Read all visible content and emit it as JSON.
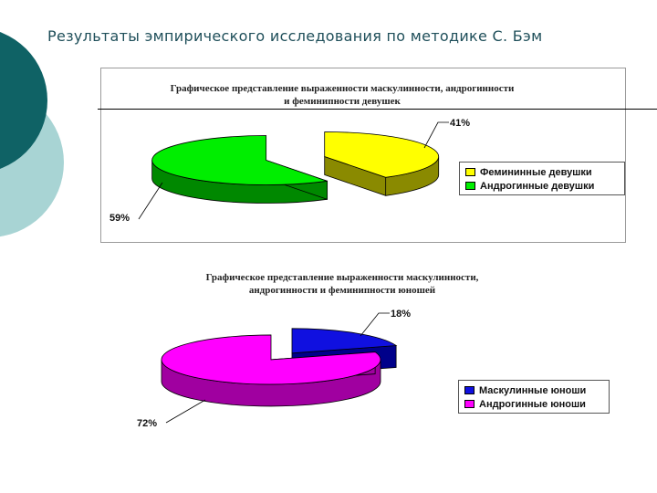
{
  "slide": {
    "title": "Результаты эмпирического исследования по методике С. Бэм"
  },
  "chart_data": [
    {
      "type": "pie",
      "title": "Графическое представление выраженности маскулинности, андрогинности и феминипности девушек",
      "title_lines": [
        "Графическое представление выраженности маскулинности, андрогинности",
        "и феминипности девушек"
      ],
      "categories": [
        "Фемининные девушки",
        "Андрогинные девушки"
      ],
      "values": [
        41,
        59
      ],
      "data_labels": [
        "41%",
        "59%"
      ],
      "colors": [
        "#ffff00",
        "#00ee00"
      ],
      "legend_position": "right",
      "three_d": true
    },
    {
      "type": "pie",
      "title": "Графическое представление выраженности маскулинности, андрогинности и феминипности юношей",
      "title_lines": [
        "Графическое представление выраженности маскулинности,",
        "андрогинности и феминипности юношей"
      ],
      "categories": [
        "Маскулинные юноши",
        "Андрогинные юноши"
      ],
      "values": [
        18,
        72
      ],
      "data_labels": [
        "18%",
        "72%"
      ],
      "colors": [
        "#1010e0",
        "#ff00ff"
      ],
      "legend_position": "right",
      "three_d": true
    }
  ]
}
